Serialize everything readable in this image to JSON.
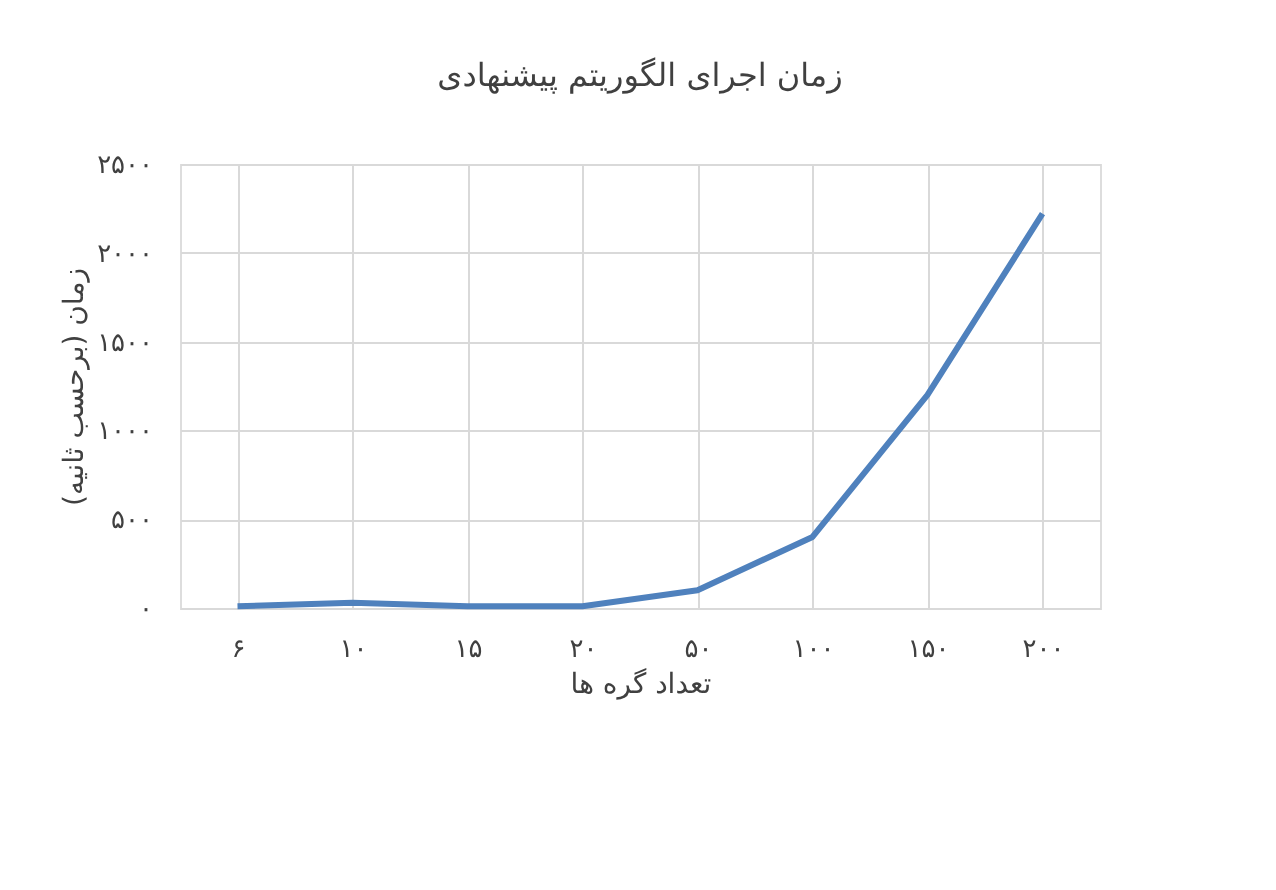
{
  "chart_data": {
    "type": "line",
    "title": "زمان اجرای الگوریتم پیشنهادی",
    "xlabel": "تعداد گره ها",
    "ylabel": "زمان (برحسب ثانیه)",
    "categories": [
      "۶",
      "۱۰",
      "۱۵",
      "۲۰",
      "۵۰",
      "۱۰۰",
      "۱۵۰",
      "۲۰۰"
    ],
    "series": [
      {
        "color": "#4f81bd",
        "values": [
          10,
          30,
          10,
          10,
          100,
          400,
          1200,
          2220
        ]
      }
    ],
    "ylim": [
      0,
      2500
    ],
    "yticks": [
      {
        "value": 0,
        "label": "۰"
      },
      {
        "value": 500,
        "label": "۵۰۰"
      },
      {
        "value": 1000,
        "label": "۱۰۰۰"
      },
      {
        "value": 1500,
        "label": "۱۵۰۰"
      },
      {
        "value": 2000,
        "label": "۲۰۰۰"
      },
      {
        "value": 2500,
        "label": "۲۵۰۰"
      }
    ],
    "grid": true,
    "line_style": "solid",
    "marker": "none"
  }
}
